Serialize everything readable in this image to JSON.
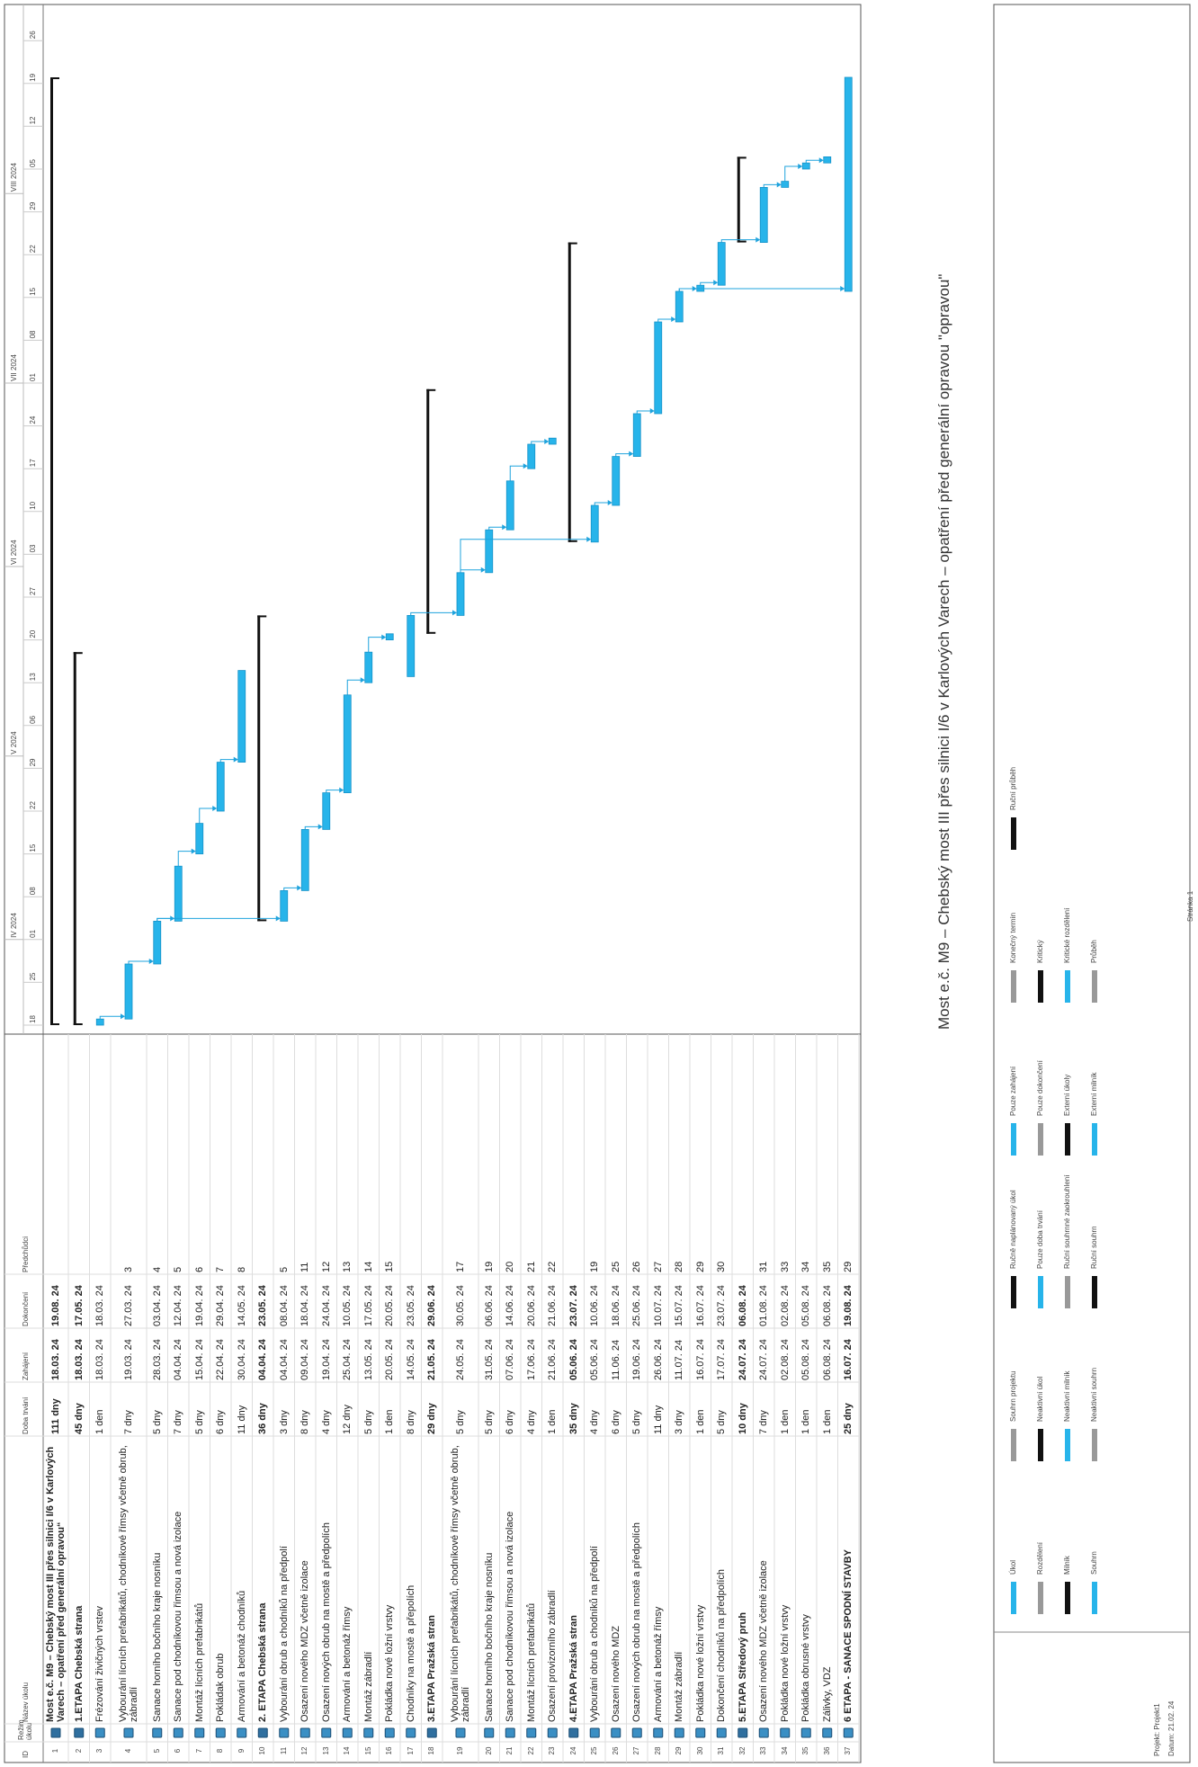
{
  "header": {
    "title": "Most e.č. M9 – Chebský most III přes silnici I/6 v Karlových Varech – opatření před generální opravou \"opravou\""
  },
  "table": {
    "columns": [
      "ID",
      "Režim úkolu",
      "Název úkolu",
      "Doba trvání",
      "Zahájení",
      "Dokončení",
      "Předchůdci"
    ],
    "rows": [
      {
        "id": 1,
        "name": "Most e.č. M9 – Chebský most III přes silnici I/6 v Karlových Varech – opatření před generální opravou“",
        "duration": "111 dny",
        "start": "18.03. 24",
        "finish": "19.08. 24",
        "summary": true
      },
      {
        "id": 2,
        "name": "1.ETAPA Chebská strana",
        "duration": "45 dny",
        "start": "18.03. 24",
        "finish": "17.05. 24",
        "summary": true
      },
      {
        "id": 3,
        "name": "Frézování živičných vrstev",
        "duration": "1 den",
        "start": "18.03. 24",
        "finish": "18.03. 24"
      },
      {
        "id": 4,
        "name": "Vybourání lícních prefabrikátů, chodníkové římsy včetně obrub, zábradlí",
        "duration": "7 dny",
        "start": "19.03. 24",
        "finish": "27.03. 24",
        "predecessors": 3
      },
      {
        "id": 5,
        "name": "Sanace horního bočního kraje nosníku",
        "duration": "5 dny",
        "start": "28.03. 24",
        "finish": "03.04. 24",
        "predecessors": 4
      },
      {
        "id": 6,
        "name": "Sanace pod chodníkovou římsou a nová izolace",
        "duration": "7 dny",
        "start": "04.04. 24",
        "finish": "12.04. 24",
        "predecessors": 5
      },
      {
        "id": 7,
        "name": "Montáž lícních prefabrikátů",
        "duration": "5 dny",
        "start": "15.04. 24",
        "finish": "19.04. 24",
        "predecessors": 6
      },
      {
        "id": 8,
        "name": "Pokládak obrub",
        "duration": "6 dny",
        "start": "22.04. 24",
        "finish": "29.04. 24",
        "predecessors": 7
      },
      {
        "id": 9,
        "name": "Armování a betonáž chodníků",
        "duration": "11 dny",
        "start": "30.04. 24",
        "finish": "14.05. 24",
        "predecessors": 8
      },
      {
        "id": 10,
        "name": "2. ETAPA Chebská strana",
        "duration": "36 dny",
        "start": "04.04. 24",
        "finish": "23.05. 24",
        "summary": true
      },
      {
        "id": 11,
        "name": "Vybourání obrub a chodníků na předpolí",
        "duration": "3 dny",
        "start": "04.04. 24",
        "finish": "08.04. 24",
        "predecessors": 5
      },
      {
        "id": 12,
        "name": "Osazení nového MDZ včetně izolace",
        "duration": "8 dny",
        "start": "09.04. 24",
        "finish": "18.04. 24",
        "predecessors": 11
      },
      {
        "id": 13,
        "name": "Osazení nových obrub na mostě a předpolích",
        "duration": "4 dny",
        "start": "19.04. 24",
        "finish": "24.04. 24",
        "predecessors": 12
      },
      {
        "id": 14,
        "name": "Armování a betonáž římsy",
        "duration": "12 dny",
        "start": "25.04. 24",
        "finish": "10.05. 24",
        "predecessors": 13
      },
      {
        "id": 15,
        "name": "Montáž zábradlí",
        "duration": "5 dny",
        "start": "13.05. 24",
        "finish": "17.05. 24",
        "predecessors": 14
      },
      {
        "id": 16,
        "name": "Pokládka nové ložní vrstvy",
        "duration": "1 den",
        "start": "20.05. 24",
        "finish": "20.05. 24",
        "predecessors": 15
      },
      {
        "id": 17,
        "name": "Chodníky na mostě a přepolích",
        "duration": "8 dny",
        "start": "14.05. 24",
        "finish": "23.05. 24"
      },
      {
        "id": 18,
        "name": "3.ETAPA Pražská stran",
        "duration": "29 dny",
        "start": "21.05. 24",
        "finish": "29.06. 24",
        "summary": true
      },
      {
        "id": 19,
        "name": "Vybourání lícních prefabrikátů, chodníkové římsy včetně obrub, zábradlí",
        "duration": "5 dny",
        "start": "24.05. 24",
        "finish": "30.05. 24",
        "predecessors": 17
      },
      {
        "id": 20,
        "name": "Sanace horního bočního kraje nosníku",
        "duration": "5 dny",
        "start": "31.05. 24",
        "finish": "06.06. 24",
        "predecessors": 19
      },
      {
        "id": 21,
        "name": "Sanace pod chodníkovou římsou a nová izolace",
        "duration": "6 dny",
        "start": "07.06. 24",
        "finish": "14.06. 24",
        "predecessors": 20
      },
      {
        "id": 22,
        "name": "Montáž lícních prefabrikátů",
        "duration": "4 dny",
        "start": "17.06. 24",
        "finish": "20.06. 24",
        "predecessors": 21
      },
      {
        "id": 23,
        "name": "Osazení provizorního zábradlí",
        "duration": "1 den",
        "start": "21.06. 24",
        "finish": "21.06. 24",
        "predecessors": 22
      },
      {
        "id": 24,
        "name": "4.ETAPA Pražská stran",
        "duration": "35 dny",
        "start": "05.06. 24",
        "finish": "23.07. 24",
        "summary": true
      },
      {
        "id": 25,
        "name": "Vybourání obrub a chodníků na předpolí",
        "duration": "4 dny",
        "start": "05.06. 24",
        "finish": "10.06. 24",
        "predecessors": 19
      },
      {
        "id": 26,
        "name": "Osazení nového MDZ",
        "duration": "6 dny",
        "start": "11.06. 24",
        "finish": "18.06. 24",
        "predecessors": 25
      },
      {
        "id": 27,
        "name": "Osazení nových obrub na mostě a předpolích",
        "duration": "5 dny",
        "start": "19.06. 24",
        "finish": "25.06. 24",
        "predecessors": 26
      },
      {
        "id": 28,
        "name": "Armování a betonáž římsy",
        "duration": "11 dny",
        "start": "26.06. 24",
        "finish": "10.07. 24",
        "predecessors": 27
      },
      {
        "id": 29,
        "name": "Montáž zábradlí",
        "duration": "3 dny",
        "start": "11.07. 24",
        "finish": "15.07. 24",
        "predecessors": 28
      },
      {
        "id": 30,
        "name": "Pokládka nové ložní vrstvy",
        "duration": "1 den",
        "start": "16.07. 24",
        "finish": "16.07. 24",
        "predecessors": 29
      },
      {
        "id": 31,
        "name": "Dokončení chodníků na předpolích",
        "duration": "5 dny",
        "start": "17.07. 24",
        "finish": "23.07. 24",
        "predecessors": 30
      },
      {
        "id": 32,
        "name": "5.ETAPA Středový pruh",
        "duration": "10 dny",
        "start": "24.07. 24",
        "finish": "06.08. 24",
        "summary": true
      },
      {
        "id": 33,
        "name": "Osazení nového MDZ včetně izolace",
        "duration": "7 dny",
        "start": "24.07. 24",
        "finish": "01.08. 24",
        "predecessors": 31
      },
      {
        "id": 34,
        "name": "Pokládka nové ložní vrstvy",
        "duration": "1 den",
        "start": "02.08. 24",
        "finish": "02.08. 24",
        "predecessors": 33
      },
      {
        "id": 35,
        "name": "Pokládka obrusné vrstvy",
        "duration": "1 den",
        "start": "05.08. 24",
        "finish": "05.08. 24",
        "predecessors": 34
      },
      {
        "id": 36,
        "name": "Zálivky, VDZ",
        "duration": "1 den",
        "start": "06.08. 24",
        "finish": "06.08. 24",
        "predecessors": 35
      },
      {
        "id": 37,
        "name": "6 ETAPA - SANACE SPODNÍ STAVBY",
        "duration": "25 dny",
        "start": "16.07. 24",
        "finish": "19.08. 24",
        "predecessors": 29,
        "bold": true
      }
    ]
  },
  "timescale": {
    "months": [
      "IV 2024",
      "V 2024",
      "VI 2024",
      "VII 2024",
      "VIII 2024"
    ],
    "weeks": [
      "18",
      "25",
      "01",
      "08",
      "15",
      "22",
      "29",
      "06",
      "13",
      "20",
      "27",
      "03",
      "10",
      "17",
      "24",
      "01",
      "08",
      "15",
      "22",
      "29",
      "05",
      "12",
      "19",
      "26"
    ]
  },
  "footer": {
    "project": "Projekt: Projekt1",
    "date": "Datum: 21.02. 24",
    "legend": [
      "Úkol",
      "Rozdělení",
      "Milník",
      "Souhrn",
      "Souhrn projektu",
      "Neaktivní úkol",
      "Neaktivní milník",
      "Neaktivní souhrn",
      "Ručně naplánovaný úkol",
      "Pouze doba trvání",
      "Ruční souhrnné zaokrouhlení",
      "Ruční souhrn",
      "Pouze zahájení",
      "Pouze dokončení",
      "Externí úkoly",
      "Externí milník",
      "Konečný termín",
      "Kritický",
      "Kritické rozdělení",
      "Průběh",
      "Ruční průběh"
    ],
    "page": "Stránka 1"
  }
}
